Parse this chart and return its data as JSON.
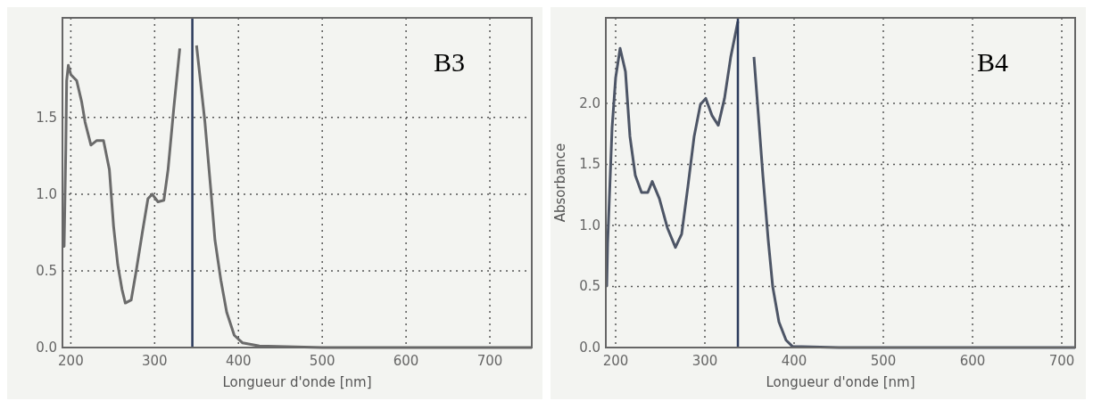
{
  "chart_data": [
    {
      "type": "line",
      "xlabel": "Longueur d'onde [nm]",
      "annotations": [
        "B3"
      ],
      "grid": true,
      "line_style": "solid",
      "xlim": [
        190,
        750
      ],
      "xticks": [
        200,
        300,
        400,
        500,
        600,
        700
      ],
      "ylim": [
        0,
        2.15
      ],
      "yticks": [
        {
          "value": 0,
          "label": "0.0"
        },
        {
          "value": 0.5,
          "label": "0.5"
        },
        {
          "value": 1,
          "label": "1.0"
        },
        {
          "value": 1.5,
          "label": "1.5"
        }
      ],
      "ref_lines": [
        {
          "axis": "x",
          "value": 345,
          "color": "#2b3a5c"
        }
      ],
      "series": [
        {
          "color": "#6b6b6b",
          "x": [
            191,
            192,
            194,
            195,
            197,
            200,
            207,
            213,
            217,
            224,
            231,
            239,
            246,
            251,
            256,
            261,
            265,
            272,
            278,
            285,
            292,
            297,
            304,
            311,
            316,
            323,
            330,
            335,
            342,
            350,
            360,
            367,
            372,
            379,
            386,
            395,
            405,
            425,
            500,
            600,
            750
          ],
          "values": [
            0.66,
            0.66,
            1.3,
            1.74,
            1.84,
            1.78,
            1.74,
            1.6,
            1.47,
            1.32,
            1.35,
            1.35,
            1.16,
            0.79,
            0.54,
            0.38,
            0.29,
            0.31,
            0.5,
            0.74,
            0.97,
            1.0,
            0.95,
            0.96,
            1.16,
            1.57,
            1.95,
            null,
            null,
            1.97,
            1.47,
            1.03,
            0.7,
            0.44,
            0.23,
            0.08,
            0.03,
            0.01,
            0.0,
            0.0,
            0.0
          ]
        }
      ]
    },
    {
      "type": "line",
      "xlabel": "Longueur d'onde [nm]",
      "ylabel": "Absorbance",
      "annotations": [
        "B4"
      ],
      "grid": true,
      "line_style": "solid",
      "xlim": [
        189,
        715
      ],
      "xticks": [
        200,
        300,
        400,
        500,
        600,
        700
      ],
      "ylim": [
        0,
        2.7
      ],
      "yticks": [
        {
          "value": 0,
          "label": "0.0"
        },
        {
          "value": 0.5,
          "label": "0.5"
        },
        {
          "value": 1,
          "label": "1.0"
        },
        {
          "value": 1.5,
          "label": "1.5"
        },
        {
          "value": 2,
          "label": "2.0"
        }
      ],
      "ref_lines": [
        {
          "axis": "x",
          "value": 337,
          "color": "#2b3a5c"
        }
      ],
      "series": [
        {
          "color": "#4d5566",
          "x": [
            190,
            191,
            196,
            200,
            205,
            211,
            216,
            222,
            229,
            236,
            241,
            249,
            258,
            267,
            274,
            281,
            288,
            295,
            301,
            308,
            315,
            322,
            329,
            337,
            340,
            347,
            355,
            360,
            365,
            371,
            376,
            383,
            391,
            398,
            450,
            550,
            715
          ],
          "values": [
            0.5,
            0.85,
            1.8,
            2.21,
            2.45,
            2.26,
            1.73,
            1.41,
            1.27,
            1.27,
            1.36,
            1.22,
            0.98,
            0.82,
            0.93,
            1.32,
            1.73,
            1.99,
            2.04,
            1.9,
            1.82,
            2.04,
            2.38,
            2.67,
            null,
            null,
            2.38,
            1.9,
            1.41,
            0.88,
            0.5,
            0.21,
            0.06,
            0.01,
            0.0,
            0.0,
            0.0
          ]
        }
      ]
    }
  ]
}
